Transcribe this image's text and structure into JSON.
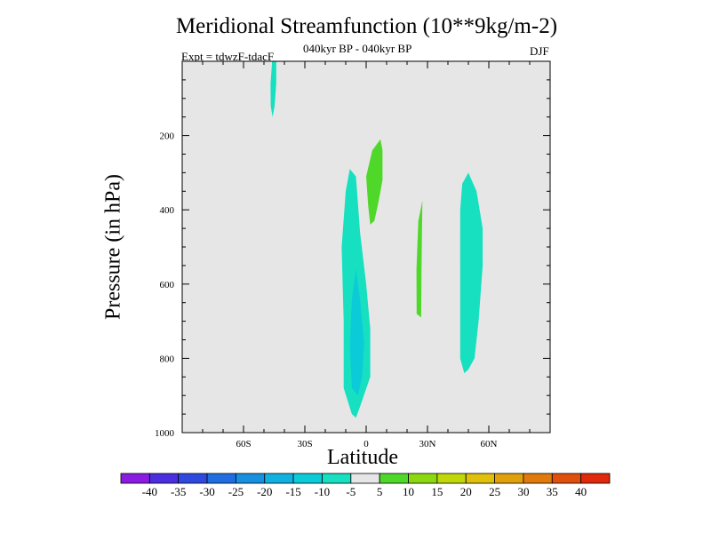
{
  "chart_data": {
    "type": "contour",
    "title": "Meridional Streamfunction (10**9kg/m-2)",
    "subtitle": "040kyr BP - 040kyr BP",
    "expt_label": "Expt = tdwzF-tdacF",
    "season": "DJF",
    "xlabel": "Latitude",
    "ylabel": "Pressure (in hPa)",
    "xlim": [
      -90,
      90
    ],
    "ylim": [
      1000,
      0
    ],
    "x_ticks": [
      {
        "value": -60,
        "label": "60S"
      },
      {
        "value": -30,
        "label": "30S"
      },
      {
        "value": 0,
        "label": "0"
      },
      {
        "value": 30,
        "label": "30N"
      },
      {
        "value": 60,
        "label": "60N"
      }
    ],
    "y_ticks": [
      {
        "value": 200,
        "label": "200"
      },
      {
        "value": 400,
        "label": "400"
      },
      {
        "value": 600,
        "label": "600"
      },
      {
        "value": 800,
        "label": "800"
      },
      {
        "value": 1000,
        "label": "1000"
      }
    ],
    "background_color": "#e6e6e6",
    "colorbar": {
      "levels": [
        "-40",
        "-35",
        "-30",
        "-25",
        "-20",
        "-15",
        "-10",
        "-5",
        "5",
        "10",
        "15",
        "20",
        "25",
        "30",
        "35",
        "40"
      ],
      "colors": [
        "#8a1be0",
        "#4b2ee0",
        "#2f49e0",
        "#1f6de0",
        "#1890e0",
        "#10b0e0",
        "#0ccbd8",
        "#16e0c0",
        "#e6e6e6",
        "#4fd82a",
        "#8bd80f",
        "#c0d808",
        "#e0c00a",
        "#e0a00c",
        "#e07a0c",
        "#e0500c",
        "#e0280c"
      ]
    },
    "regions": [
      {
        "name": "high-lat-south-upper",
        "level": "-10 to -5",
        "color": "#16e0c0",
        "points": [
          [
            -46,
            0
          ],
          [
            -44,
            0
          ],
          [
            -44,
            60
          ],
          [
            -44.8,
            120
          ],
          [
            -45.8,
            150
          ],
          [
            -46.7,
            120
          ],
          [
            -46.8,
            60
          ]
        ]
      },
      {
        "name": "equatorial-south-cyan",
        "level": "-10 to -5",
        "color": "#16e0c0",
        "points": [
          [
            -8,
            290
          ],
          [
            -5,
            310
          ],
          [
            -3,
            460
          ],
          [
            0,
            600
          ],
          [
            2,
            720
          ],
          [
            2,
            850
          ],
          [
            -3,
            930
          ],
          [
            -5,
            960
          ],
          [
            -7,
            950
          ],
          [
            -11,
            880
          ],
          [
            -11,
            700
          ],
          [
            -12,
            500
          ],
          [
            -10,
            350
          ]
        ]
      },
      {
        "name": "equatorial-south-core",
        "level": "-15 to -10",
        "color": "#0ccbd8",
        "points": [
          [
            -5,
            560
          ],
          [
            -3,
            640
          ],
          [
            -1,
            760
          ],
          [
            -2,
            850
          ],
          [
            -4,
            900
          ],
          [
            -7,
            880
          ],
          [
            -8,
            770
          ],
          [
            -7,
            640
          ]
        ]
      },
      {
        "name": "equatorial-north-green",
        "level": "5 to 10",
        "color": "#4fd82a",
        "points": [
          [
            7,
            210
          ],
          [
            8,
            240
          ],
          [
            8,
            320
          ],
          [
            6,
            380
          ],
          [
            4,
            430
          ],
          [
            2,
            440
          ],
          [
            1,
            390
          ],
          [
            0,
            310
          ],
          [
            3,
            240
          ]
        ]
      },
      {
        "name": "subtropical-north-green",
        "level": "5 to 10",
        "color": "#4fd82a",
        "points": [
          [
            27.5,
            375
          ],
          [
            27.3,
            460
          ],
          [
            27.1,
            560
          ],
          [
            26.9,
            690
          ],
          [
            24.7,
            680
          ],
          [
            24.6,
            560
          ],
          [
            25.5,
            430
          ]
        ]
      },
      {
        "name": "midlat-north-cyan",
        "level": "-10 to -5",
        "color": "#16e0c0",
        "points": [
          [
            50,
            300
          ],
          [
            54,
            350
          ],
          [
            57,
            450
          ],
          [
            57,
            550
          ],
          [
            55,
            700
          ],
          [
            53,
            800
          ],
          [
            50,
            830
          ],
          [
            48,
            840
          ],
          [
            46,
            800
          ],
          [
            46,
            700
          ],
          [
            46,
            550
          ],
          [
            46,
            400
          ],
          [
            47,
            330
          ]
        ]
      }
    ]
  }
}
